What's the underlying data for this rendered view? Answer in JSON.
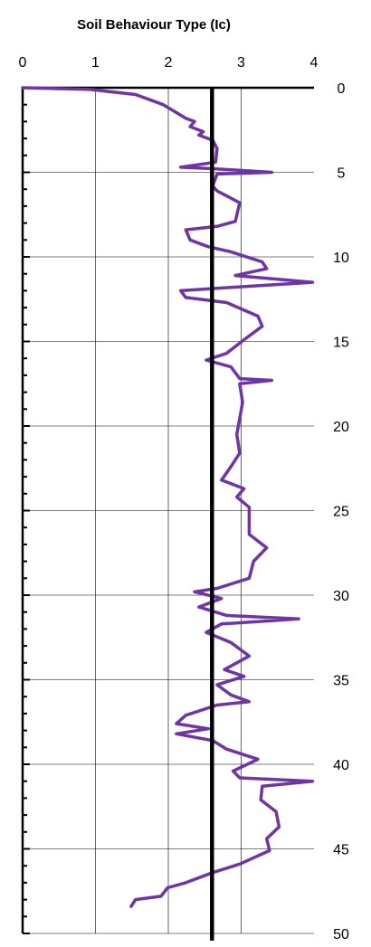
{
  "chart_data": {
    "type": "line",
    "title": "Soil Behaviour Type (Ic)",
    "xlim": [
      0,
      4
    ],
    "xticks": [
      0,
      1,
      2,
      3,
      4
    ],
    "ylim": [
      0,
      50
    ],
    "yticks": [
      0,
      5,
      10,
      15,
      20,
      25,
      30,
      35,
      40,
      45,
      50
    ],
    "yminorticks": [
      1,
      2,
      3,
      4,
      6,
      7,
      8,
      9,
      11,
      12,
      13,
      14,
      16,
      17,
      18,
      19,
      21,
      22,
      23,
      24,
      26,
      27,
      28,
      29,
      31,
      32,
      33,
      34,
      36,
      37,
      38,
      39,
      41,
      42,
      43,
      44,
      46,
      47,
      48,
      49
    ],
    "y_inverted": true,
    "xaxis_position": "top",
    "ytick_label_side": "right",
    "grid": true,
    "reference_lines": [
      {
        "x": 2.6,
        "color": "#000000"
      }
    ],
    "series": [
      {
        "color": "#6f35a5",
        "x": [
          0,
          0.93,
          1.55,
          1.93,
          2.24,
          2.36,
          2.3,
          2.48,
          2.42,
          2.61,
          2.67,
          2.65,
          2.17,
          2.67,
          3.42,
          2.67,
          2.61,
          2.67,
          2.98,
          2.92,
          2.67,
          2.24,
          2.3,
          2.55,
          2.86,
          3.29,
          3.35,
          2.92,
          3.98,
          2.86,
          2.17,
          2.24,
          2.8,
          3.23,
          3.29,
          3.04,
          2.8,
          2.52,
          2.86,
          2.98,
          3.42,
          2.98,
          3.02,
          2.94,
          2.98,
          2.86,
          2.73,
          3.04,
          2.94,
          3.11,
          3.11,
          3.35,
          3.17,
          3.11,
          2.67,
          2.36,
          2.73,
          2.42,
          2.8,
          3.79,
          2.73,
          2.52,
          2.86,
          3.11,
          2.77,
          3.04,
          2.67,
          2.86,
          3.11,
          2.67,
          2.24,
          2.11,
          2.55,
          2.11,
          2.61,
          2.8,
          3.23,
          2.89,
          2.98,
          3.98,
          3.29,
          3.27,
          3.48,
          3.52,
          3.35,
          3.39,
          2.98,
          2.61,
          2.24,
          1.99,
          1.9,
          1.55,
          1.49
        ],
        "y": [
          0,
          0.1,
          0.4,
          1.0,
          1.8,
          2.0,
          2.3,
          2.6,
          2.8,
          3.1,
          3.6,
          4.4,
          4.7,
          4.8,
          5.0,
          5.1,
          5.8,
          6.1,
          6.8,
          7.9,
          8.2,
          8.4,
          9.0,
          9.4,
          9.7,
          10.3,
          10.7,
          11.1,
          11.5,
          11.8,
          12.0,
          12.4,
          12.7,
          13.5,
          14.1,
          14.9,
          15.7,
          16.1,
          16.5,
          17.2,
          17.3,
          17.5,
          18.6,
          20.5,
          21.6,
          22.4,
          23.2,
          23.7,
          24.2,
          24.8,
          26.4,
          27.2,
          28.0,
          29.0,
          29.6,
          29.8,
          30.2,
          30.7,
          31.2,
          31.4,
          31.7,
          32.2,
          32.8,
          33.6,
          34.4,
          34.8,
          35.3,
          35.9,
          36.3,
          36.5,
          37.1,
          37.6,
          37.9,
          38.2,
          38.6,
          39.1,
          39.7,
          40.4,
          40.8,
          41.0,
          41.3,
          42.1,
          42.8,
          43.7,
          44.4,
          45.1,
          45.9,
          46.4,
          47.0,
          47.3,
          47.8,
          48.0,
          48.4
        ]
      }
    ]
  }
}
